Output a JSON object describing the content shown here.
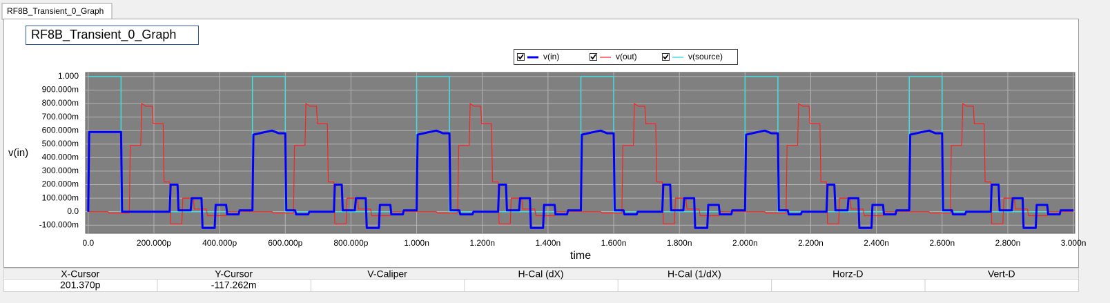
{
  "tab_label": "RF8B_Transient_0_Graph",
  "chart_data": {
    "type": "line",
    "title": "RF8B_Transient_0_Graph",
    "y_label": "v(in)",
    "x_label": "time",
    "xlim": [
      -8,
      3004
    ],
    "ylim": [
      -0.16,
      1.03
    ],
    "xticks": [
      {
        "value": 0,
        "label": "0.0"
      },
      {
        "value": 200,
        "label": "200.000p"
      },
      {
        "value": 400,
        "label": "400.000p"
      },
      {
        "value": 600,
        "label": "600.000p"
      },
      {
        "value": 800,
        "label": "800.000p"
      },
      {
        "value": 1000,
        "label": "1.000n"
      },
      {
        "value": 1200,
        "label": "1.200n"
      },
      {
        "value": 1400,
        "label": "1.400n"
      },
      {
        "value": 1600,
        "label": "1.600n"
      },
      {
        "value": 1800,
        "label": "1.800n"
      },
      {
        "value": 2000,
        "label": "2.000n"
      },
      {
        "value": 2200,
        "label": "2.200n"
      },
      {
        "value": 2400,
        "label": "2.400n"
      },
      {
        "value": 2600,
        "label": "2.600n"
      },
      {
        "value": 2800,
        "label": "2.800n"
      },
      {
        "value": 3000,
        "label": "3.000n"
      }
    ],
    "yticks": [
      {
        "value": 1,
        "label": "1.000"
      },
      {
        "value": 0.9,
        "label": "900.000m"
      },
      {
        "value": 0.8,
        "label": "800.000m"
      },
      {
        "value": 0.7,
        "label": "700.000m"
      },
      {
        "value": 0.6,
        "label": "600.000m"
      },
      {
        "value": 0.5,
        "label": "500.000m"
      },
      {
        "value": 0.4,
        "label": "400.000m"
      },
      {
        "value": 0.3,
        "label": "300.000m"
      },
      {
        "value": 0.2,
        "label": "200.000m"
      },
      {
        "value": 0.1,
        "label": "100.000m"
      },
      {
        "value": 0,
        "label": "0.0"
      },
      {
        "value": -0.1,
        "label": "-100.000m"
      }
    ],
    "grid": true,
    "legend": "top",
    "series": [
      {
        "name": "v(in)",
        "color": "#0000ff",
        "width": 3,
        "x": [
          0,
          3,
          100,
          103,
          248,
          251,
          272,
          275,
          312,
          315,
          345,
          348,
          385,
          388,
          420,
          423,
          458,
          461,
          500,
          503,
          540,
          560,
          580,
          600,
          603,
          630,
          633,
          670,
          673,
          748,
          751,
          772,
          775,
          812,
          815,
          845,
          848,
          885,
          888,
          920,
          923,
          958,
          961,
          1000,
          1003,
          1040,
          1060,
          1080,
          1100,
          1103,
          1130,
          1133,
          1170,
          1173,
          1248,
          1251,
          1272,
          1275,
          1312,
          1315,
          1345,
          1348,
          1385,
          1388,
          1420,
          1423,
          1458,
          1461,
          1500,
          1503,
          1540,
          1560,
          1580,
          1600,
          1603,
          1630,
          1633,
          1670,
          1673,
          1748,
          1751,
          1772,
          1775,
          1812,
          1815,
          1845,
          1848,
          1885,
          1888,
          1920,
          1923,
          1958,
          1961,
          2000,
          2003,
          2040,
          2060,
          2080,
          2100,
          2103,
          2130,
          2133,
          2170,
          2173,
          2248,
          2251,
          2272,
          2275,
          2312,
          2315,
          2345,
          2348,
          2385,
          2388,
          2420,
          2423,
          2458,
          2461,
          2500,
          2503,
          2540,
          2560,
          2580,
          2600,
          2603,
          2630,
          2633,
          2670,
          2673,
          2748,
          2751,
          2772,
          2775,
          2812,
          2815,
          2845,
          2848,
          2885,
          2888,
          2920,
          2923,
          2958,
          2961,
          3000
        ],
        "values": [
          0,
          0.59,
          0.59,
          0,
          0,
          0.2,
          0.2,
          0.01,
          0.01,
          0.1,
          0.1,
          -0.12,
          -0.12,
          0.05,
          0.05,
          -0.02,
          -0.02,
          0.01,
          0.01,
          0.57,
          0.59,
          0.6,
          0.58,
          0.58,
          0.01,
          0.01,
          -0.02,
          -0.02,
          0,
          0,
          0.2,
          0.2,
          0.01,
          0.01,
          0.1,
          0.1,
          -0.12,
          -0.12,
          0.05,
          0.05,
          -0.02,
          -0.02,
          0.01,
          0.01,
          0.57,
          0.59,
          0.6,
          0.58,
          0.58,
          0.01,
          0.01,
          -0.02,
          -0.02,
          0,
          0,
          0.2,
          0.2,
          0.01,
          0.01,
          0.1,
          0.1,
          -0.12,
          -0.12,
          0.05,
          0.05,
          -0.02,
          -0.02,
          0.01,
          0.01,
          0.57,
          0.59,
          0.6,
          0.58,
          0.58,
          0.01,
          0.01,
          -0.02,
          -0.02,
          0,
          0,
          0.2,
          0.2,
          0.01,
          0.01,
          0.1,
          0.1,
          -0.12,
          -0.12,
          0.05,
          0.05,
          -0.02,
          -0.02,
          0.01,
          0.01,
          0.57,
          0.59,
          0.6,
          0.58,
          0.58,
          0.01,
          0.01,
          -0.02,
          -0.02,
          0,
          0,
          0.2,
          0.2,
          0.01,
          0.01,
          0.1,
          0.1,
          -0.12,
          -0.12,
          0.05,
          0.05,
          -0.02,
          -0.02,
          0.01,
          0.01,
          0.57,
          0.59,
          0.6,
          0.58,
          0.58,
          0.01,
          0.01,
          -0.02,
          -0.02,
          0,
          0,
          0.2,
          0.2,
          0.01,
          0.01,
          0.1,
          0.1,
          -0.12,
          -0.12,
          0.05,
          0.05,
          -0.02,
          -0.02,
          0.01,
          0.01
        ]
      },
      {
        "name": "v(out)",
        "color": "#ff2020",
        "width": 1.2,
        "x": [
          0,
          60,
          63,
          125,
          128,
          160,
          163,
          175,
          195,
          198,
          228,
          231,
          248,
          251,
          285,
          288,
          320,
          323,
          360,
          363,
          420,
          423,
          500,
          560,
          563,
          625,
          628,
          660,
          663,
          675,
          695,
          698,
          728,
          731,
          748,
          751,
          785,
          788,
          820,
          823,
          860,
          863,
          920,
          923,
          1000,
          1060,
          1063,
          1125,
          1128,
          1160,
          1163,
          1175,
          1195,
          1198,
          1228,
          1231,
          1248,
          1251,
          1285,
          1288,
          1320,
          1323,
          1360,
          1363,
          1420,
          1423,
          1500,
          1560,
          1563,
          1625,
          1628,
          1660,
          1663,
          1675,
          1695,
          1698,
          1728,
          1731,
          1748,
          1751,
          1785,
          1788,
          1820,
          1823,
          1860,
          1863,
          1920,
          1923,
          2000,
          2060,
          2063,
          2125,
          2128,
          2160,
          2163,
          2175,
          2195,
          2198,
          2228,
          2231,
          2248,
          2251,
          2285,
          2288,
          2320,
          2323,
          2360,
          2363,
          2420,
          2423,
          2500,
          2560,
          2563,
          2625,
          2628,
          2660,
          2663,
          2675,
          2695,
          2698,
          2728,
          2731,
          2748,
          2751,
          2785,
          2788,
          2820,
          2823,
          2860,
          2863,
          2920,
          2923,
          3000
        ],
        "values": [
          0,
          0,
          -0.01,
          -0.01,
          0.49,
          0.49,
          0.8,
          0.78,
          0.78,
          0.65,
          0.65,
          0.22,
          0.22,
          -0.09,
          -0.09,
          0.1,
          0.1,
          0.02,
          0.02,
          -0.03,
          -0.03,
          0,
          0,
          0,
          -0.01,
          -0.01,
          0.49,
          0.49,
          0.8,
          0.78,
          0.78,
          0.65,
          0.65,
          0.22,
          0.22,
          -0.09,
          -0.09,
          0.1,
          0.1,
          0.02,
          0.02,
          -0.03,
          -0.03,
          0,
          0,
          0,
          -0.01,
          -0.01,
          0.49,
          0.49,
          0.8,
          0.78,
          0.78,
          0.65,
          0.65,
          0.22,
          0.22,
          -0.09,
          -0.09,
          0.1,
          0.1,
          0.02,
          0.02,
          -0.03,
          -0.03,
          0,
          0,
          0,
          -0.01,
          -0.01,
          0.49,
          0.49,
          0.8,
          0.78,
          0.78,
          0.65,
          0.65,
          0.22,
          0.22,
          -0.09,
          -0.09,
          0.1,
          0.1,
          0.02,
          0.02,
          -0.03,
          -0.03,
          0,
          0,
          0,
          -0.01,
          -0.01,
          0.49,
          0.49,
          0.8,
          0.78,
          0.78,
          0.65,
          0.65,
          0.22,
          0.22,
          -0.09,
          -0.09,
          0.1,
          0.1,
          0.02,
          0.02,
          -0.03,
          -0.03,
          0,
          0,
          0,
          -0.01,
          -0.01,
          0.49,
          0.49,
          0.8,
          0.78,
          0.78,
          0.65,
          0.65,
          0.22,
          0.22,
          -0.09,
          -0.09,
          0.1,
          0.1,
          0.02,
          0.02,
          -0.03,
          -0.03,
          0,
          0
        ]
      },
      {
        "name": "v(source)",
        "color": "#40e0e0",
        "width": 1.5,
        "x": [
          0,
          100,
          100,
          500,
          500,
          600,
          600,
          1000,
          1000,
          1100,
          1100,
          1500,
          1500,
          1600,
          1600,
          2000,
          2000,
          2100,
          2100,
          2500,
          2500,
          2600,
          2600,
          3000
        ],
        "values": [
          1,
          1,
          0,
          0,
          1,
          1,
          0,
          0,
          1,
          1,
          0,
          0,
          1,
          1,
          0,
          0,
          1,
          1,
          0,
          0,
          1,
          1,
          0,
          0
        ]
      }
    ]
  },
  "cursor_table": {
    "headers": [
      "X-Cursor",
      "Y-Cursor",
      "V-Caliper",
      "H-Cal (dX)",
      "H-Cal (1/dX)",
      "Horz-D",
      "Vert-D"
    ],
    "values": [
      "201.370p",
      "-117.262m"
    ]
  }
}
